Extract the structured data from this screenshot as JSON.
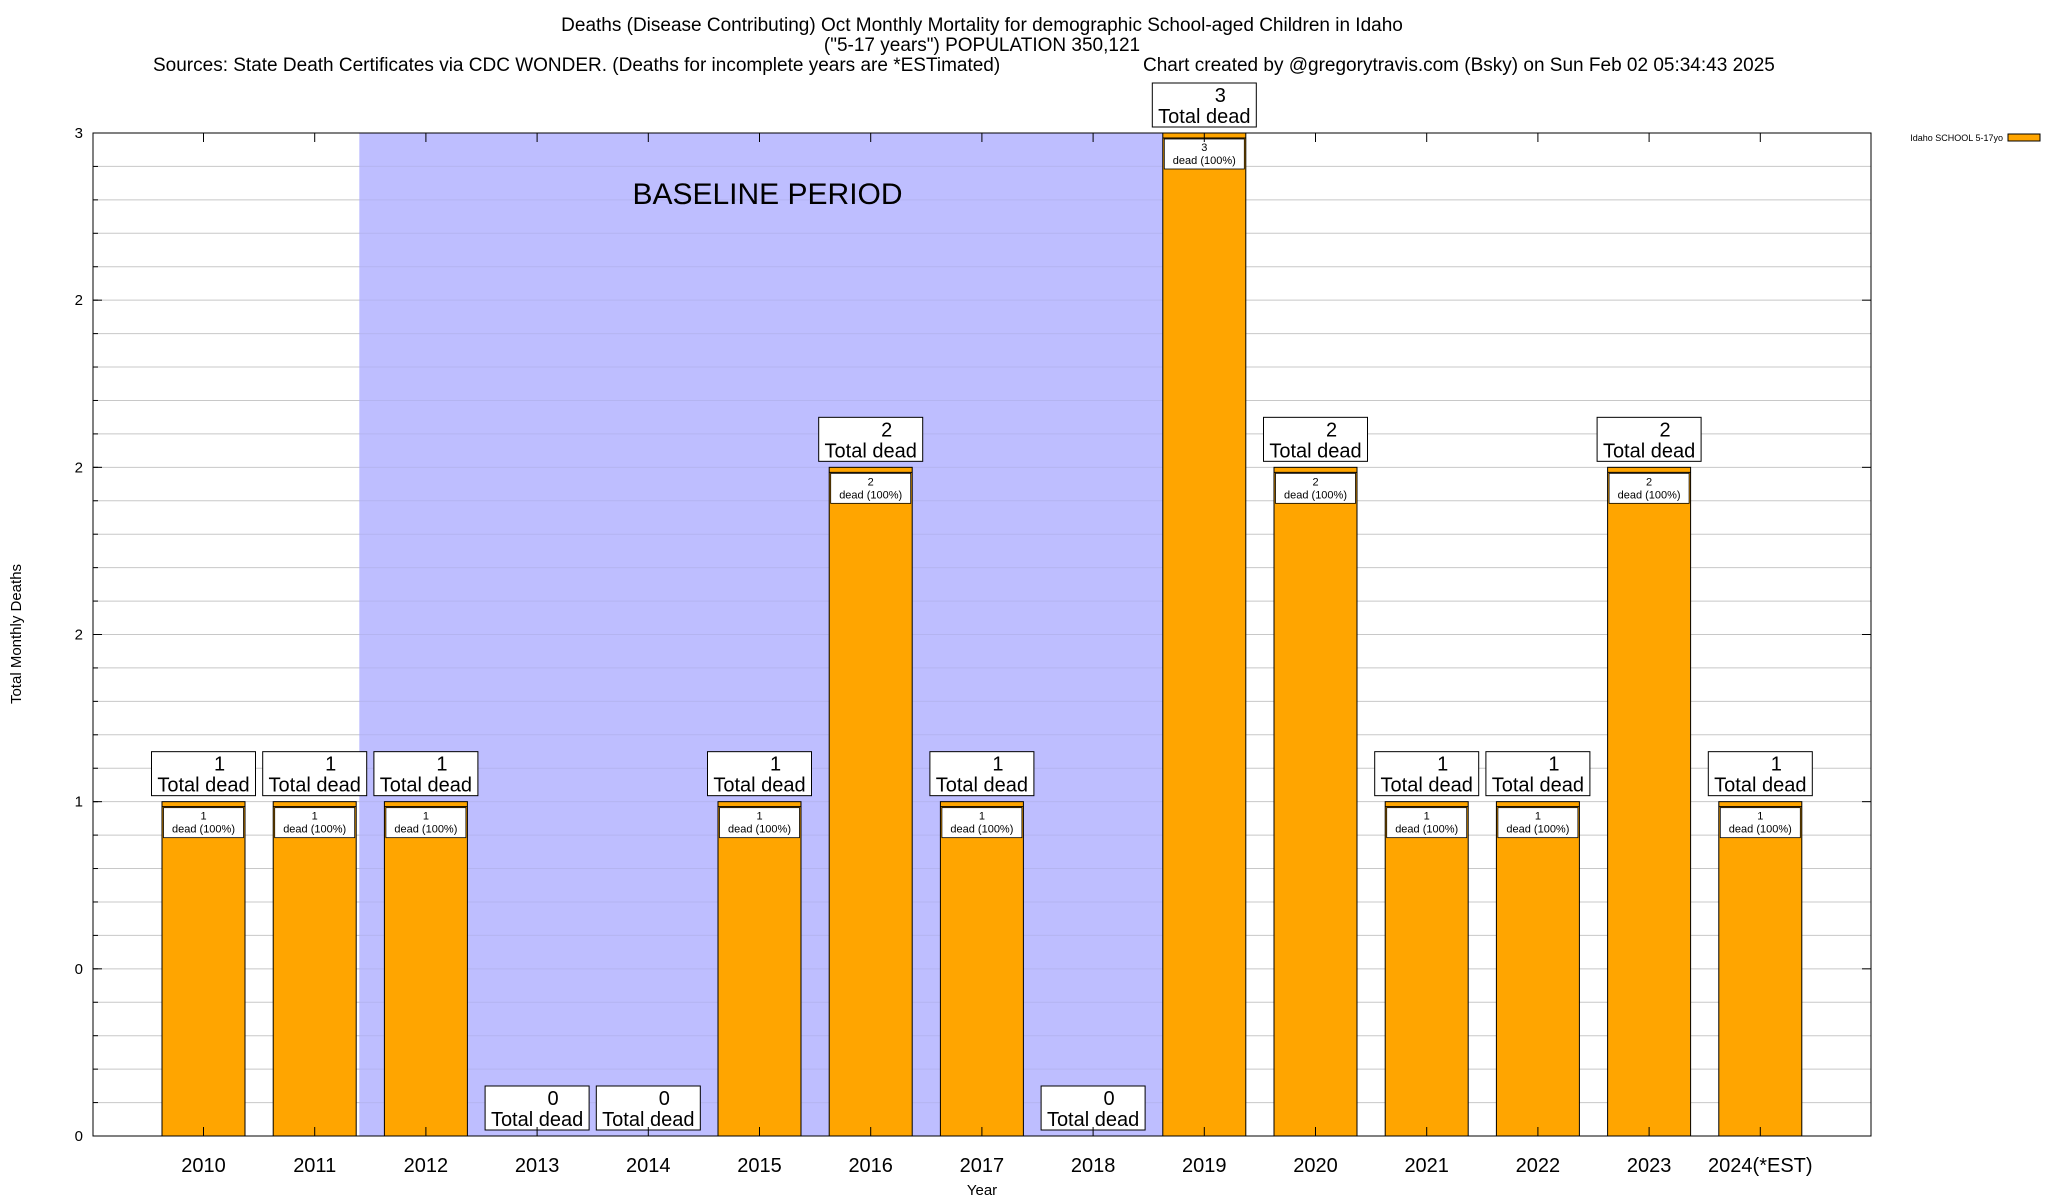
{
  "chart_data": {
    "type": "bar",
    "title_line1": "Deaths (Disease Contributing) Oct Monthly Mortality for demographic School-aged Children in Idaho",
    "title_line2": "(\"5-17 years\") POPULATION 350,121",
    "sources": "Sources: State Death Certificates via CDC WONDER. (Deaths for incomplete years are *ESTimated)",
    "credit": "Chart created by @gregorytravis.com (Bsky) on Sun Feb 02 05:34:43 2025",
    "xlabel": "Year",
    "ylabel": "Total Monthly Deaths",
    "ylim": [
      0,
      3
    ],
    "y_ticks": [
      {
        "value": 0,
        "label": "0"
      },
      {
        "value": 0.5,
        "label": "0"
      },
      {
        "value": 1,
        "label": "1"
      },
      {
        "value": 1.5,
        "label": "2"
      },
      {
        "value": 2,
        "label": "2"
      },
      {
        "value": 2.5,
        "label": "2"
      },
      {
        "value": 3,
        "label": "3"
      }
    ],
    "minor_grid_step": 0.1,
    "grid": true,
    "legend_position": "top-right",
    "categories": [
      "2010",
      "2011",
      "2012",
      "2013",
      "2014",
      "2015",
      "2016",
      "2017",
      "2018",
      "2019",
      "2020",
      "2021",
      "2022",
      "2023",
      "2024(*EST)"
    ],
    "series": [
      {
        "name": "Idaho SCHOOL 5-17yo",
        "color": "#ffa500",
        "values": [
          1,
          1,
          1,
          0,
          0,
          1,
          2,
          1,
          0,
          3,
          2,
          1,
          1,
          2,
          1
        ]
      }
    ],
    "baseline": {
      "label": "BASELINE PERIOD",
      "start": "2012",
      "end": "2019",
      "color": "#bebeff"
    },
    "total_label_word": "Total dead",
    "inner_label_word": "dead (100%)"
  }
}
